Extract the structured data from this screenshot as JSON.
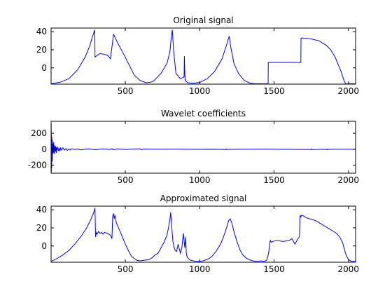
{
  "chart_data": [
    {
      "type": "line",
      "title": "Original signal",
      "xlabel": "",
      "ylabel": "",
      "xlim": [
        1,
        2048
      ],
      "ylim": [
        -18,
        44
      ],
      "xticks": [
        500,
        1000,
        1500,
        2000
      ],
      "yticks": [
        0,
        20,
        40
      ],
      "grid": false,
      "color": "#0000ff",
      "series": [
        {
          "x": [
            1,
            60,
            120,
            180,
            230,
            260,
            280,
            295,
            296,
            330,
            380,
            400,
            420,
            421,
            450,
            480,
            520,
            560,
            600,
            640,
            680,
            700,
            740,
            780,
            800,
            810,
            816,
            825,
            840,
            870,
            895,
            897,
            900,
            902,
            920,
            960,
            1000,
            1050,
            1100,
            1150,
            1180,
            1198,
            1210,
            1230,
            1260,
            1300,
            1340,
            1370,
            1371,
            1460,
            1461,
            1465,
            1466,
            1680,
            1681,
            1700,
            1750,
            1800,
            1850,
            1880,
            1910,
            1930,
            1950,
            1970,
            1980,
            2048
          ],
          "y": [
            -17.5,
            -16,
            -12,
            -2,
            12,
            24,
            35,
            42,
            12,
            16,
            14,
            10,
            36,
            37,
            27,
            18,
            5,
            -8,
            -14,
            -16.5,
            -15.5,
            -13,
            -6,
            5,
            18,
            36,
            42,
            18,
            -6,
            -12,
            -10,
            13,
            -6,
            -14,
            -16.5,
            -17,
            -16,
            -12,
            -4,
            10,
            25,
            35,
            22,
            5,
            -6,
            -14,
            -17,
            -17.5,
            -17.5,
            -17.5,
            6,
            6,
            6,
            6,
            33,
            33,
            32,
            30,
            25,
            20,
            12,
            4,
            -4,
            -14,
            -17.5,
            -17.5
          ]
        }
      ]
    },
    {
      "type": "line",
      "title": "Wavelet coefficients",
      "xlabel": "",
      "ylabel": "",
      "xlim": [
        1,
        2048
      ],
      "ylim": [
        -300,
        350
      ],
      "xticks": [
        500,
        1000,
        1500,
        2000
      ],
      "yticks": [
        -200,
        0,
        200
      ],
      "grid": false,
      "color": "#0000ff",
      "series": [
        {
          "x": [
            1,
            2,
            3,
            4,
            5,
            6,
            7,
            8,
            9,
            10,
            12,
            14,
            16,
            18,
            20,
            22,
            24,
            26,
            28,
            30,
            32,
            34,
            36,
            38,
            40,
            45,
            50,
            55,
            60,
            65,
            70,
            80,
            90,
            100,
            110,
            120,
            130,
            140,
            160,
            180,
            200,
            250,
            300,
            350,
            400,
            410,
            420,
            440,
            500,
            600,
            610,
            620,
            700,
            800,
            900,
            1000,
            1100,
            1180,
            1181,
            1182,
            1300,
            1400,
            1500,
            1600,
            1749,
            1750,
            1751,
            1850,
            1860,
            1861,
            1862,
            1900,
            2000,
            2048
          ],
          "y": [
            60,
            320,
            -280,
            180,
            -240,
            150,
            -90,
            120,
            -150,
            80,
            -60,
            70,
            -50,
            90,
            -40,
            30,
            -60,
            50,
            -20,
            40,
            -30,
            25,
            -45,
            20,
            -15,
            30,
            -20,
            10,
            -25,
            15,
            -10,
            20,
            -12,
            8,
            -15,
            5,
            -10,
            6,
            -4,
            3,
            -8,
            5,
            -6,
            4,
            -3,
            8,
            -7,
            3,
            -2,
            5,
            -6,
            2,
            0,
            1,
            0,
            -1,
            0,
            -3,
            5,
            -2,
            0,
            1,
            0,
            -1,
            -4,
            6,
            -3,
            0,
            -6,
            4,
            -2,
            0,
            0,
            0
          ]
        }
      ]
    },
    {
      "type": "line",
      "title": "Approximated signal",
      "xlabel": "",
      "ylabel": "",
      "xlim": [
        1,
        2048
      ],
      "ylim": [
        -18,
        44
      ],
      "xticks": [
        500,
        1000,
        1500,
        2000
      ],
      "yticks": [
        0,
        20,
        40
      ],
      "grid": false,
      "color": "#0000ff",
      "series": [
        {
          "x": [
            1,
            40,
            80,
            120,
            160,
            200,
            240,
            270,
            290,
            296,
            300,
            305,
            310,
            320,
            330,
            340,
            350,
            360,
            380,
            400,
            410,
            415,
            420,
            425,
            430,
            440,
            460,
            480,
            500,
            520,
            540,
            560,
            580,
            600,
            620,
            640,
            660,
            680,
            700,
            720,
            740,
            760,
            780,
            790,
            800,
            805,
            810,
            815,
            820,
            828,
            836,
            845,
            855,
            870,
            880,
            890,
            895,
            900,
            905,
            910,
            915,
            925,
            940,
            960,
            980,
            1000,
            1020,
            1050,
            1080,
            1110,
            1140,
            1160,
            1180,
            1195,
            1205,
            1215,
            1230,
            1250,
            1270,
            1290,
            1310,
            1330,
            1350,
            1370,
            1390,
            1410,
            1430,
            1450,
            1460,
            1465,
            1470,
            1475,
            1480,
            1490,
            1520,
            1560,
            1600,
            1620,
            1640,
            1660,
            1670,
            1675,
            1680,
            1685,
            1700,
            1720,
            1740,
            1760,
            1780,
            1800,
            1820,
            1840,
            1860,
            1880,
            1900,
            1920,
            1940,
            1960,
            1970,
            1980,
            1990,
            2000,
            2010,
            2020,
            2030,
            2048
          ],
          "y": [
            -17,
            -14,
            -10,
            -5,
            2,
            10,
            20,
            30,
            38,
            42,
            10,
            15,
            13,
            16,
            14,
            15,
            13,
            15,
            14,
            12,
            8,
            33,
            36,
            30,
            34,
            25,
            18,
            10,
            2,
            -5,
            -11,
            -14,
            -16,
            -16.5,
            -16,
            -15.5,
            -15,
            -13,
            -10,
            -8,
            -2,
            4,
            12,
            20,
            30,
            37,
            25,
            15,
            5,
            -2,
            -5,
            -6,
            2,
            -8,
            -2,
            14,
            6,
            -2,
            10,
            -8,
            -12,
            -14,
            -16,
            -16.5,
            -17,
            -17,
            -16.5,
            -15,
            -12,
            -6,
            2,
            10,
            20,
            28,
            30,
            26,
            16,
            5,
            -4,
            -10,
            -13,
            -15,
            -16,
            -17,
            -17,
            -16.5,
            -17,
            -16,
            -10,
            -6,
            3,
            6,
            4,
            5,
            6,
            5,
            6,
            8,
            2,
            8,
            10,
            34,
            32,
            34,
            33,
            31,
            30,
            29,
            28,
            26,
            24,
            22,
            20,
            18,
            16,
            14,
            10,
            4,
            -2,
            -8,
            -12,
            -15,
            -16,
            -17,
            -17,
            -16.5
          ]
        }
      ]
    }
  ]
}
